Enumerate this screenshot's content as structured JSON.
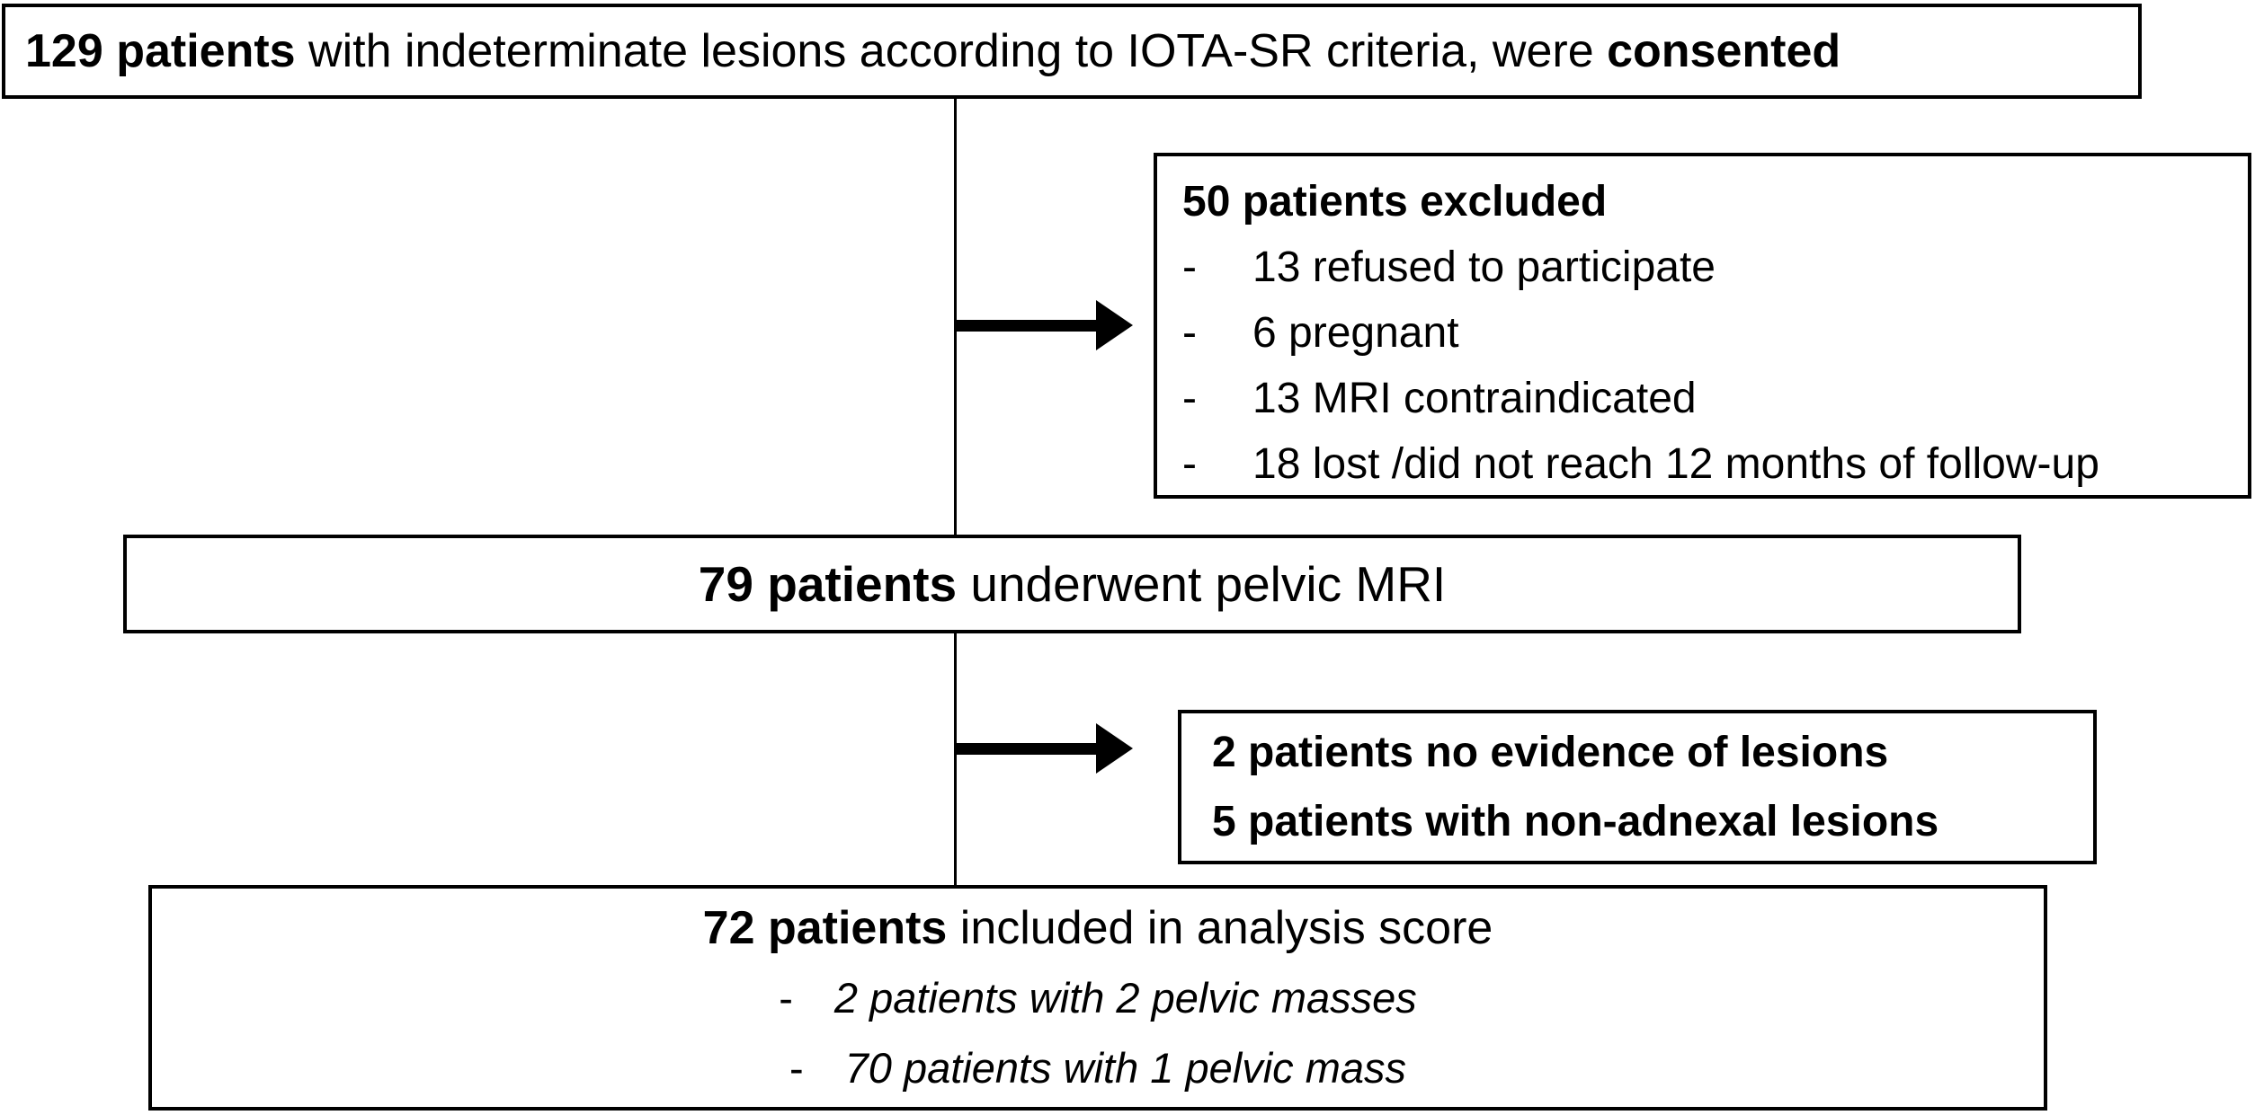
{
  "diagram": {
    "bullet_char": "-",
    "consented_box": {
      "bold_start": "129 patients",
      "middle": " with indeterminate lesions according to IOTA-SR criteria, were ",
      "bold_end": "consented"
    },
    "excluded_box": {
      "title": "50 patients excluded",
      "items": [
        "13 refused to participate",
        "6 pregnant",
        "13 MRI contraindicated",
        "18 lost /did not reach 12 months of follow-up"
      ]
    },
    "mri_box": {
      "bold_start": "79 patients",
      "rest": " underwent pelvic MRI"
    },
    "non_adnexal_box": {
      "lines": [
        "2 patients no evidence of lesions",
        "5 patients with non-adnexal lesions"
      ]
    },
    "analysis_box": {
      "bold_start": "72 patients",
      "rest": " included in analysis score",
      "items": [
        "2 patients with 2 pelvic masses",
        "70 patients with 1 pelvic mass"
      ]
    },
    "colors": {
      "border": "#000000",
      "background": "#ffffff",
      "text": "#000000"
    }
  }
}
